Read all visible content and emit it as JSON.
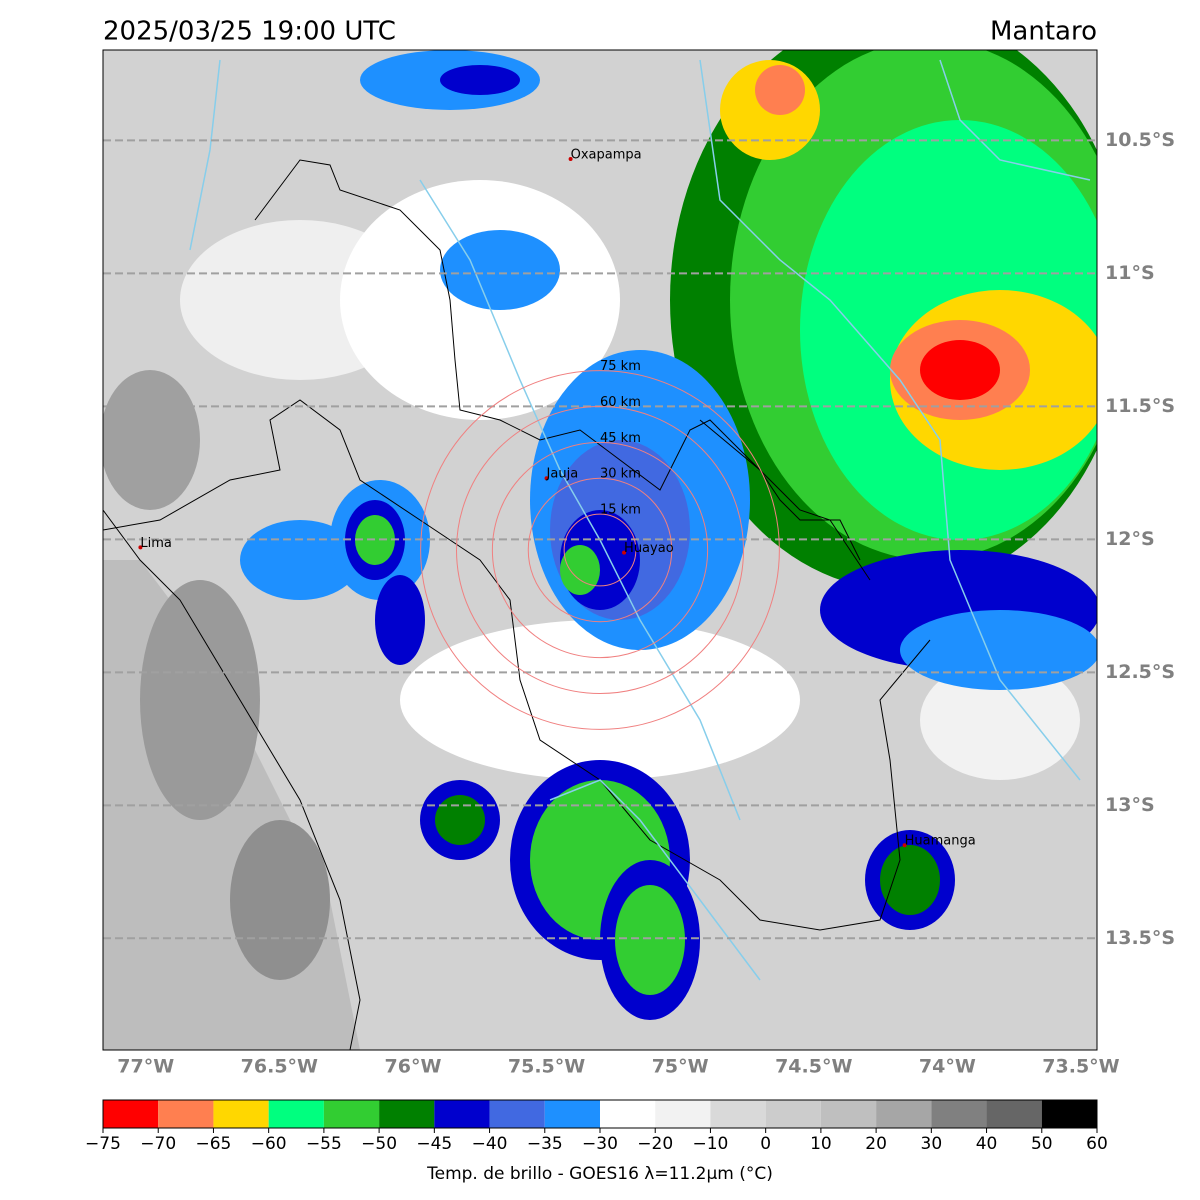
{
  "header": {
    "title": "2025/03/25 19:00 UTC",
    "region": "Mantaro"
  },
  "map": {
    "xlim": [
      -77.16,
      -73.44
    ],
    "ylim": [
      -13.92,
      -10.16
    ],
    "xticks": [
      {
        "value": -77,
        "label": "77°W"
      },
      {
        "value": -76.5,
        "label": "76.5°W"
      },
      {
        "value": -76,
        "label": "76°W"
      },
      {
        "value": -75.5,
        "label": "75.5°W"
      },
      {
        "value": -75,
        "label": "75°W"
      },
      {
        "value": -74.5,
        "label": "74.5°W"
      },
      {
        "value": -74,
        "label": "74°W"
      },
      {
        "value": -73.5,
        "label": "73.5°W"
      }
    ],
    "yticks": [
      {
        "value": -10.5,
        "label": "10.5°S"
      },
      {
        "value": -11,
        "label": "11°S"
      },
      {
        "value": -11.5,
        "label": "11.5°S"
      },
      {
        "value": -12,
        "label": "12°S"
      },
      {
        "value": -12.5,
        "label": "12.5°S"
      },
      {
        "value": -13,
        "label": "13°S"
      },
      {
        "value": -13.5,
        "label": "13.5°S"
      }
    ],
    "grid": true,
    "cities": [
      {
        "name": "Oxapampa",
        "lon": -75.41,
        "lat": -10.57
      },
      {
        "name": "Jauja",
        "lon": -75.5,
        "lat": -11.77
      },
      {
        "name": "Lima",
        "lon": -77.02,
        "lat": -12.03
      },
      {
        "name": "Huayao",
        "lon": -75.21,
        "lat": -12.05
      },
      {
        "name": "Huamanga",
        "lon": -74.16,
        "lat": -13.15
      }
    ],
    "rings": {
      "center": {
        "lon": -75.3,
        "lat": -12.04
      },
      "radii": [
        {
          "value": 15,
          "label": "15 km"
        },
        {
          "value": 30,
          "label": "30 km"
        },
        {
          "value": 45,
          "label": "45 km"
        },
        {
          "value": 60,
          "label": "60 km"
        },
        {
          "value": 75,
          "label": "75 km"
        }
      ]
    }
  },
  "colorbar": {
    "bounds": [
      {
        "value": -75,
        "label": "−75"
      },
      {
        "value": -70,
        "label": "−70"
      },
      {
        "value": -65,
        "label": "−65"
      },
      {
        "value": -60,
        "label": "−60"
      },
      {
        "value": -55,
        "label": "−55"
      },
      {
        "value": -50,
        "label": "−50"
      },
      {
        "value": -45,
        "label": "−45"
      },
      {
        "value": -40,
        "label": "−40"
      },
      {
        "value": -35,
        "label": "−35"
      },
      {
        "value": -30,
        "label": "−30"
      },
      {
        "value": -20,
        "label": "−20"
      },
      {
        "value": -10,
        "label": "−10"
      },
      0,
      10,
      20,
      30,
      40,
      50,
      60
    ],
    "colors": [
      "#ff0000",
      "#ff7f50",
      "#ffd700",
      "#00ff7f",
      "#32cd32",
      "#008000",
      "#0000cd",
      "#4169e1",
      "#1e90ff",
      "#ffffff",
      "#f2f2f2",
      "#d9d9d9",
      "#cccccc",
      "#bfbfbf",
      "#a6a6a6",
      "#808080",
      "#666666",
      "#000000"
    ],
    "label": "Temp. de brillo - GOES16 λ=11.2μm (°C)"
  }
}
